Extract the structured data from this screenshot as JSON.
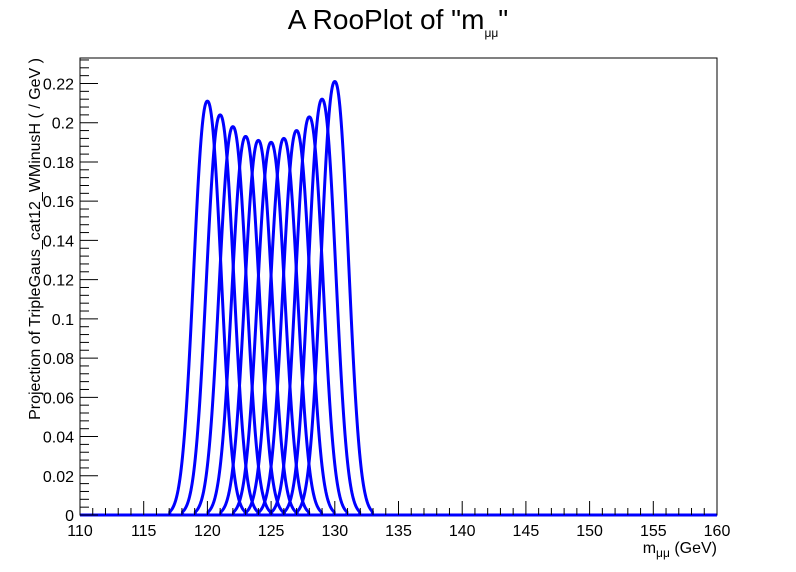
{
  "chart_data": {
    "type": "line",
    "title_main": "A RooPlot of \"m",
    "title_sub": "μμ",
    "title_end": "\"",
    "xlabel_main": "m",
    "xlabel_sub": "μμ",
    "xlabel_end": " (GeV)",
    "ylabel": "Projection of TripleGaus_cat12_WMinusH ( / GeV )",
    "xlim": [
      110,
      160
    ],
    "ylim": [
      0,
      0.233
    ],
    "x_ticks": [
      "110",
      "115",
      "120",
      "125",
      "130",
      "135",
      "140",
      "145",
      "150",
      "155",
      "160"
    ],
    "y_ticks": [
      "0",
      "0.02",
      "0.04",
      "0.06",
      "0.08",
      "0.1",
      "0.12",
      "0.14",
      "0.16",
      "0.18",
      "0.2",
      "0.22"
    ],
    "line_color": "#0000ff",
    "grid": false,
    "legend": "none",
    "series": [
      {
        "mean": 120,
        "peak": 0.211
      },
      {
        "mean": 121,
        "peak": 0.204
      },
      {
        "mean": 122,
        "peak": 0.198
      },
      {
        "mean": 123,
        "peak": 0.193
      },
      {
        "mean": 124,
        "peak": 0.191
      },
      {
        "mean": 125,
        "peak": 0.19
      },
      {
        "mean": 126,
        "peak": 0.192
      },
      {
        "mean": 127,
        "peak": 0.196
      },
      {
        "mean": 128,
        "peak": 0.203
      },
      {
        "mean": 129,
        "peak": 0.212
      },
      {
        "mean": 130,
        "peak": 0.221
      }
    ]
  }
}
